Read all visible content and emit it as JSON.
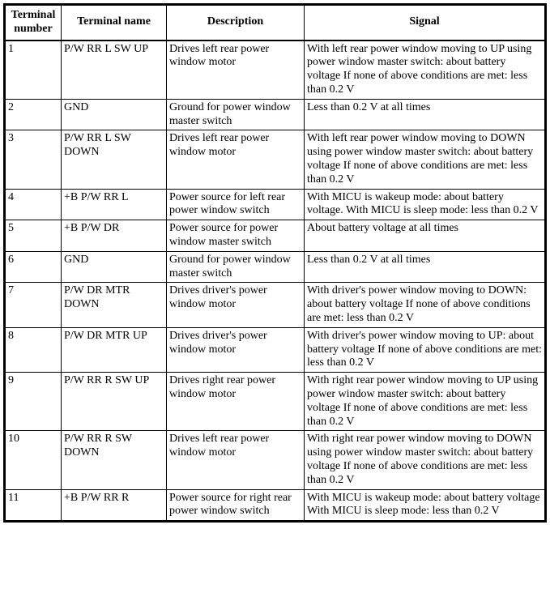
{
  "table": {
    "columns": [
      "Terminal number",
      "Terminal name",
      "Description",
      "Signal"
    ],
    "rows": [
      [
        "1",
        "P/W RR L SW UP",
        "Drives left rear power window motor",
        "With left rear power window moving to UP using power window master switch: about battery voltage If none of above conditions are met: less than 0.2 V"
      ],
      [
        "2",
        "GND",
        "Ground for power window master switch",
        "Less than 0.2 V at all times"
      ],
      [
        "3",
        "P/W RR L SW DOWN",
        "Drives left rear power window motor",
        "With left rear power window moving to DOWN using power window master switch: about battery voltage If none of above conditions are met: less than 0.2 V"
      ],
      [
        "4",
        "+B P/W RR L",
        "Power source for left rear power window switch",
        "With MICU is wakeup mode: about battery voltage. With MICU is sleep mode: less than 0.2 V"
      ],
      [
        "5",
        "+B P/W DR",
        "Power source for power window master switch",
        "About battery voltage at all times"
      ],
      [
        "6",
        "GND",
        "Ground for power window master switch",
        "Less than 0.2 V at all times"
      ],
      [
        "7",
        "P/W DR MTR DOWN",
        "Drives driver's power window motor",
        "With driver's power window moving to DOWN: about battery voltage If none of above conditions are met: less than 0.2 V"
      ],
      [
        "8",
        "P/W DR MTR UP",
        "Drives driver's power window motor",
        "With driver's power window moving to UP: about battery voltage If none of above conditions are met: less than 0.2 V"
      ],
      [
        "9",
        "P/W RR R SW UP",
        "Drives right rear power window motor",
        "With right rear power window moving to UP using power window master switch: about battery voltage If none of above conditions are met: less than 0.2 V"
      ],
      [
        "10",
        "P/W RR R SW DOWN",
        "Drives left rear power window motor",
        "With right rear power window moving to DOWN using power window master switch: about battery voltage If none of above conditions are met: less than 0.2 V"
      ],
      [
        "11",
        "+B P/W RR R",
        "Power source for right rear power window switch",
        "With MICU is wakeup mode: about battery voltage With MICU is sleep mode: less than 0.2 V"
      ]
    ]
  }
}
